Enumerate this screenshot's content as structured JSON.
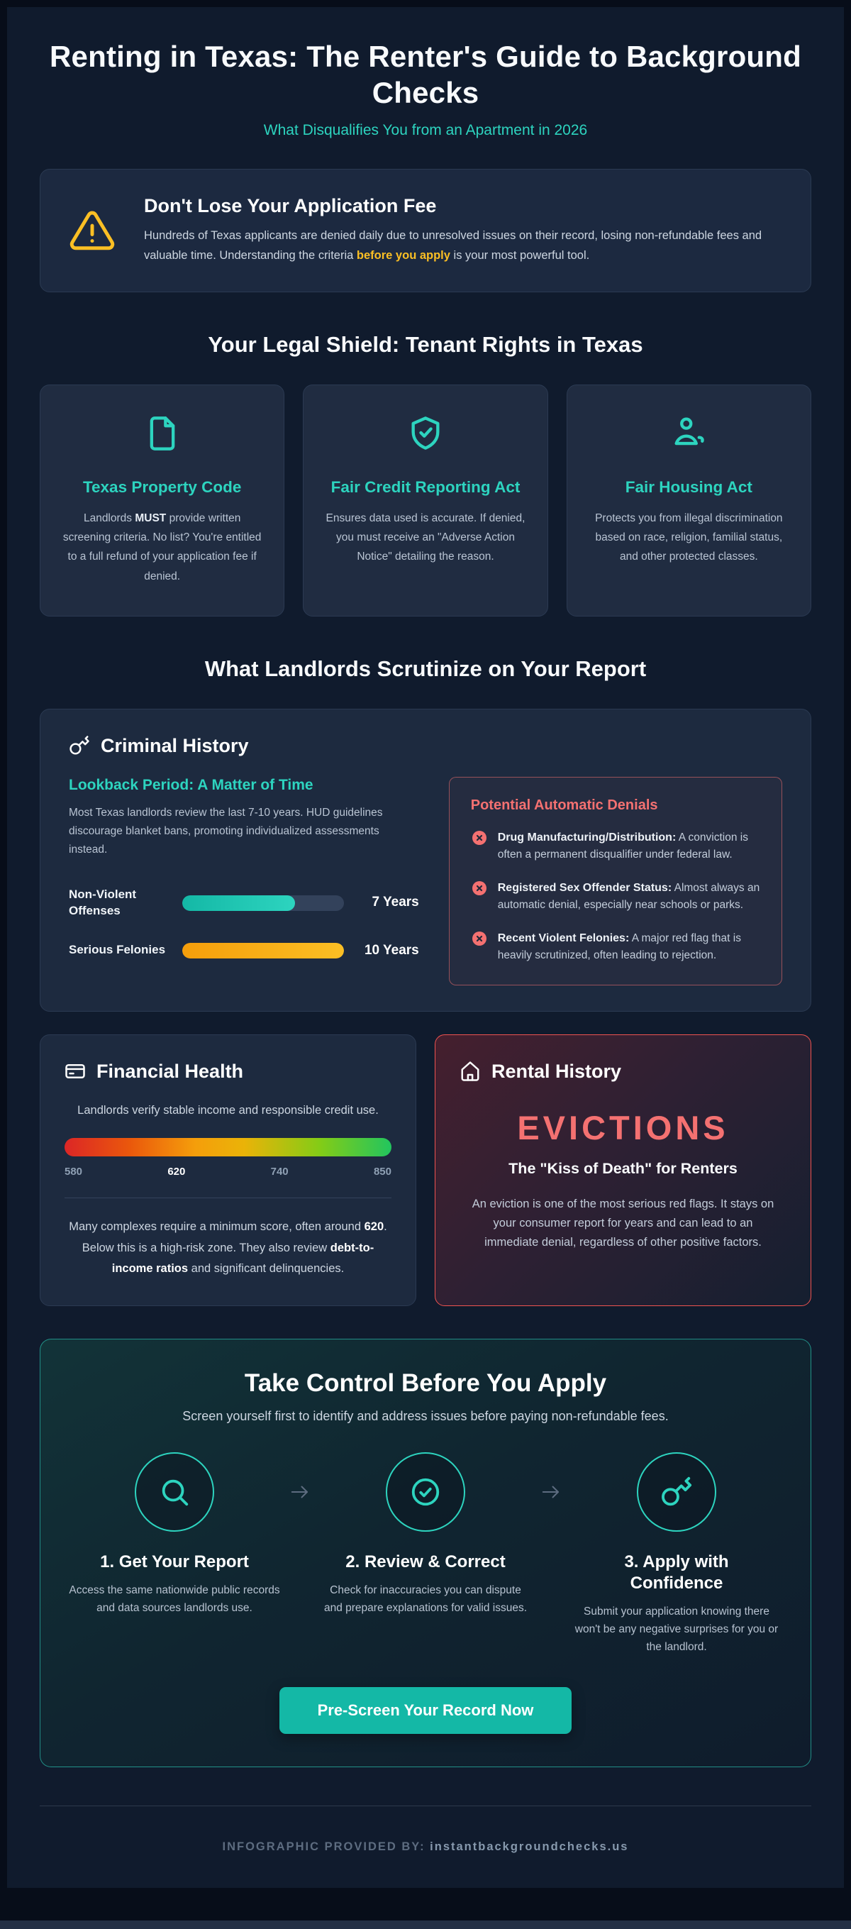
{
  "accent_colors": {
    "teal": "#2dd4bf",
    "amber": "#fbbf24",
    "salmon": "#f47171",
    "button_teal": "#14b8a6"
  },
  "header": {
    "title": "Renting in Texas: The Renter's Guide to Background Checks",
    "subtitle": "What Disqualifies You from an Apartment in 2026"
  },
  "warning": {
    "icon": "alert-triangle-icon",
    "title": "Don't Lose Your Application Fee",
    "body_pre": "Hundreds of Texas applicants are denied daily due to unresolved issues on their record, losing non-refundable fees and valuable time. Understanding the criteria ",
    "body_bold": "before you apply",
    "body_post": " is your most powerful tool."
  },
  "legal": {
    "heading": "Your Legal Shield: Tenant Rights in Texas",
    "cards": [
      {
        "icon": "document-icon",
        "title": "Texas Property Code",
        "body_pre": "Landlords ",
        "body_bold": "MUST",
        "body_post": " provide written screening criteria. No list? You're entitled to a full refund of your application fee if denied."
      },
      {
        "icon": "shield-check-icon",
        "title": "Fair Credit Reporting Act",
        "body": "Ensures data used is accurate. If denied, you must receive an \"Adverse Action Notice\" detailing the reason."
      },
      {
        "icon": "person-icon",
        "title": "Fair Housing Act",
        "body": "Protects you from illegal discrimination based on race, religion, familial status, and other protected classes."
      }
    ]
  },
  "scrutinize": {
    "heading": "What Landlords Scrutinize on Your Report",
    "criminal": {
      "icon": "key-icon",
      "title": "Criminal History",
      "lookback_title": "Lookback Period: A Matter of Time",
      "lookback_body": "Most Texas landlords review the last 7-10 years. HUD guidelines discourage blanket bans, promoting individualized assessments instead.",
      "bars": [
        {
          "label": "Non-Violent Offenses",
          "value": "7 Years",
          "percent": 70,
          "color": "teal"
        },
        {
          "label": "Serious Felonies",
          "value": "10 Years",
          "percent": 100,
          "color": "amber"
        }
      ],
      "denials": {
        "title": "Potential Automatic Denials",
        "icon": "x-circle-icon",
        "items": [
          {
            "bold": "Drug Manufacturing/Distribution:",
            "text": " A conviction is often a permanent disqualifier under federal law."
          },
          {
            "bold": "Registered Sex Offender Status:",
            "text": " Almost always an automatic denial, especially near schools or parks."
          },
          {
            "bold": "Recent Violent Felonies:",
            "text": " A major red flag that is heavily scrutinized, often leading to rejection."
          }
        ]
      }
    },
    "financial": {
      "icon": "credit-card-icon",
      "title": "Financial Health",
      "body": "Landlords verify stable income and responsible credit use.",
      "scale_labels": [
        "580",
        "620",
        "740",
        "850"
      ],
      "note_pre": "Many complexes require a minimum score, often around ",
      "note_bold1": "620",
      "note_mid": ". Below this is a high-risk zone. They also review ",
      "note_bold2": "debt-to-income ratios",
      "note_post": " and significant delinquencies."
    },
    "rental": {
      "icon": "home-icon",
      "title": "Rental History",
      "big_text": "EVICTIONS",
      "sub_text": "The \"Kiss of Death\" for Renters",
      "body": "An eviction is one of the most serious red flags. It stays on your consumer report for years and can lead to an immediate denial, regardless of other positive factors."
    }
  },
  "cta": {
    "title": "Take Control Before You Apply",
    "subtitle": "Screen yourself first to identify and address issues before paying non-refundable fees.",
    "steps": [
      {
        "icon": "search-icon",
        "title": "1. Get Your Report",
        "body": "Access the same nationwide public records and data sources landlords use."
      },
      {
        "icon": "check-circle-icon",
        "title": "2. Review & Correct",
        "body": "Check for inaccuracies you can dispute and prepare explanations for valid issues."
      },
      {
        "icon": "key-icon",
        "title": "3. Apply with Confidence",
        "body": "Submit your application knowing there won't be any negative surprises for you or the landlord."
      }
    ],
    "button_label": "Pre-Screen Your Record Now"
  },
  "footer": {
    "label": "INFOGRAPHIC PROVIDED BY:",
    "domain": "instantbackgroundchecks.us"
  }
}
